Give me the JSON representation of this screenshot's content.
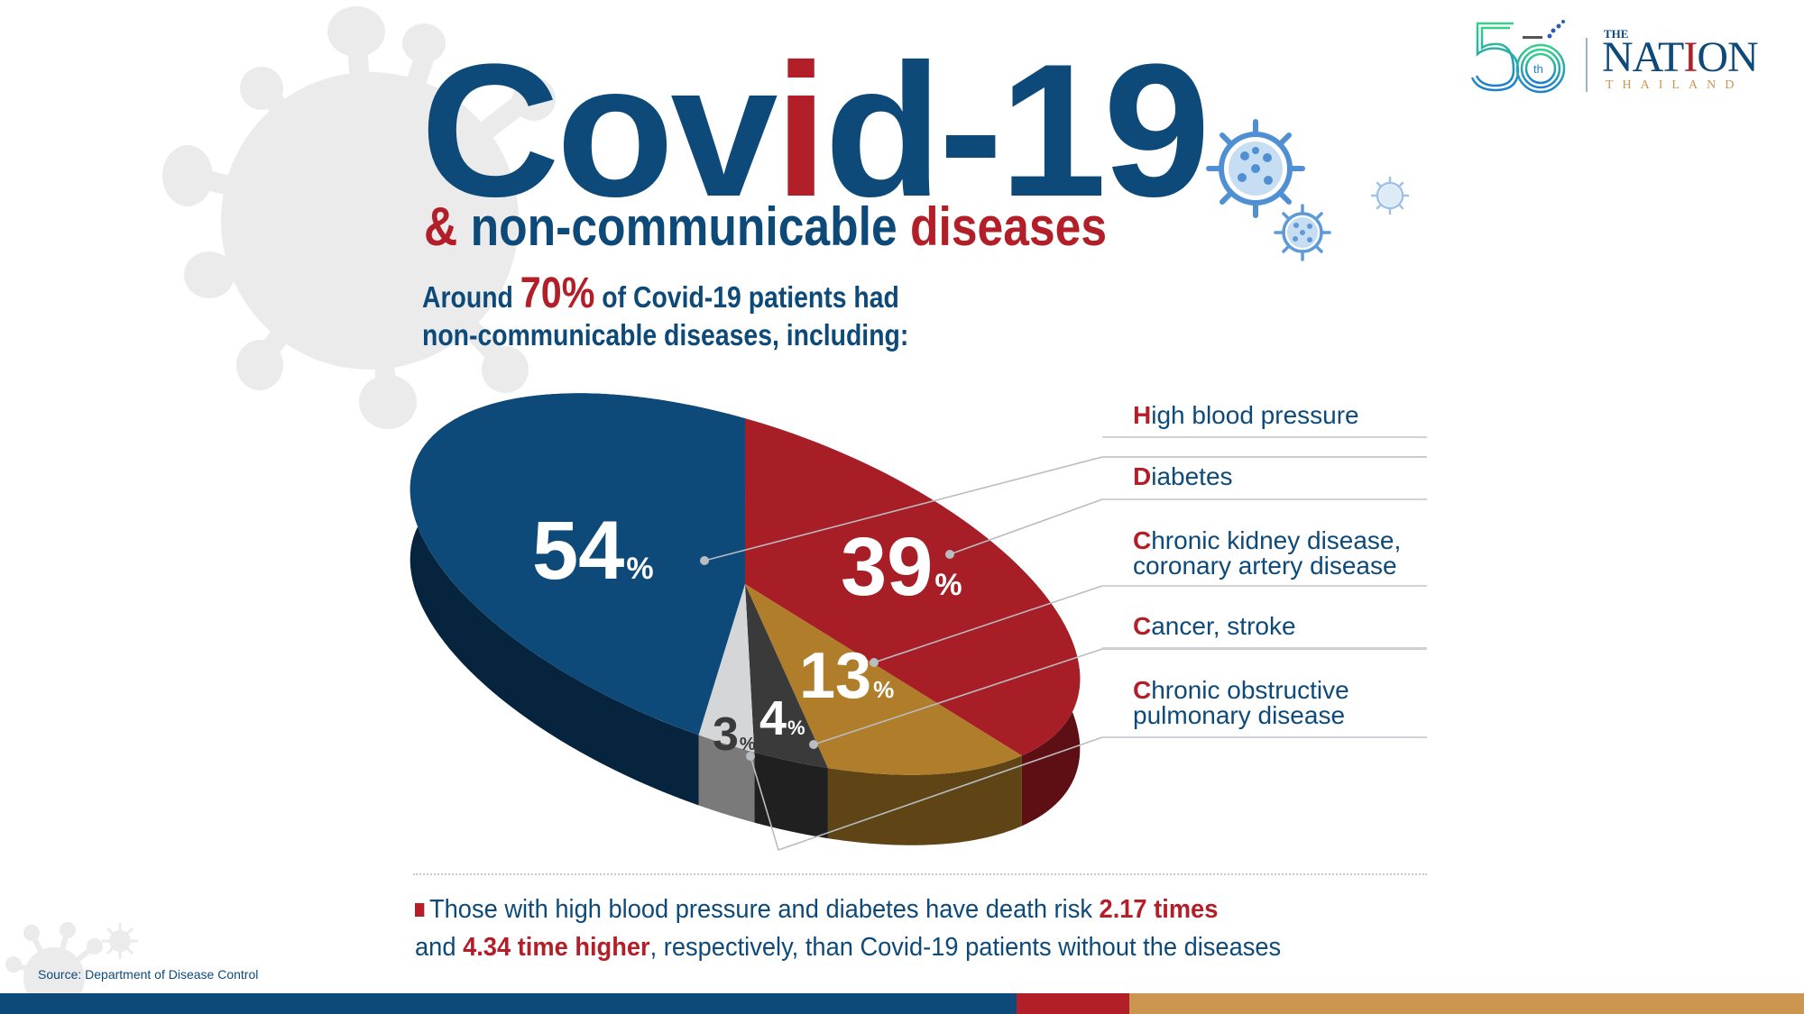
{
  "header": {
    "title_pre": "Cov",
    "title_accent": "i",
    "title_post": "d-19",
    "subtitle_amp": "&",
    "subtitle_mid": " non-communicable ",
    "subtitle_accent": "diseases",
    "intro_pre": "Around ",
    "intro_pct": "70%",
    "intro_post": " of Covid-19 patients had",
    "intro_line2": "non-communicable diseases, including:"
  },
  "logo": {
    "anniversary": "50",
    "anniversary_suffix": "th",
    "the": "THE",
    "nation_pre": "NAT",
    "nation_accent": "I",
    "nation_post": "ON",
    "thailand": "THAILAND"
  },
  "legend": [
    {
      "first": "H",
      "rest": "igh blood pressure",
      "line2": ""
    },
    {
      "first": "D",
      "rest": "iabetes",
      "line2": ""
    },
    {
      "first": "C",
      "rest": "hronic kidney disease,",
      "line2": "coronary artery disease"
    },
    {
      "first": "C",
      "rest": "ancer, stroke",
      "line2": ""
    },
    {
      "first": "C",
      "rest": "hronic obstructive",
      "line2": "pulmonary disease"
    }
  ],
  "note": {
    "line1_pre": "Those with high blood pressure and diabetes have death risk ",
    "line1_red": "2.17 times",
    "line2_pre": "and ",
    "line2_red": "4.34 time higher",
    "line2_post": ", respectively, than Covid-19 patients without the diseases"
  },
  "source": "Source: Department of Disease Control",
  "colors": {
    "navy": "#0d4a7a",
    "red": "#a81e26",
    "tan": "#b07d2b",
    "dark_gray": "#3a3a3a",
    "light_gray": "#d5d6d8",
    "bar_blue": "#0d4a7a",
    "bar_red": "#b21f28",
    "bar_tan": "#cc9651"
  },
  "chart_data": {
    "type": "pie",
    "title": "Covid-19 & non-communicable diseases",
    "subtitle": "Around 70% of Covid-19 patients had non-communicable diseases, including:",
    "categories": [
      "High blood pressure",
      "Diabetes",
      "Chronic kidney disease, coronary artery disease",
      "Cancer, stroke",
      "Chronic obstructive pulmonary disease"
    ],
    "values": [
      54,
      39,
      13,
      4,
      3
    ],
    "labels": [
      "54%",
      "39%",
      "13%",
      "4%",
      "3%"
    ],
    "unit": "%",
    "legend_position": "right",
    "style": "3d",
    "source": "Department of Disease Control"
  }
}
